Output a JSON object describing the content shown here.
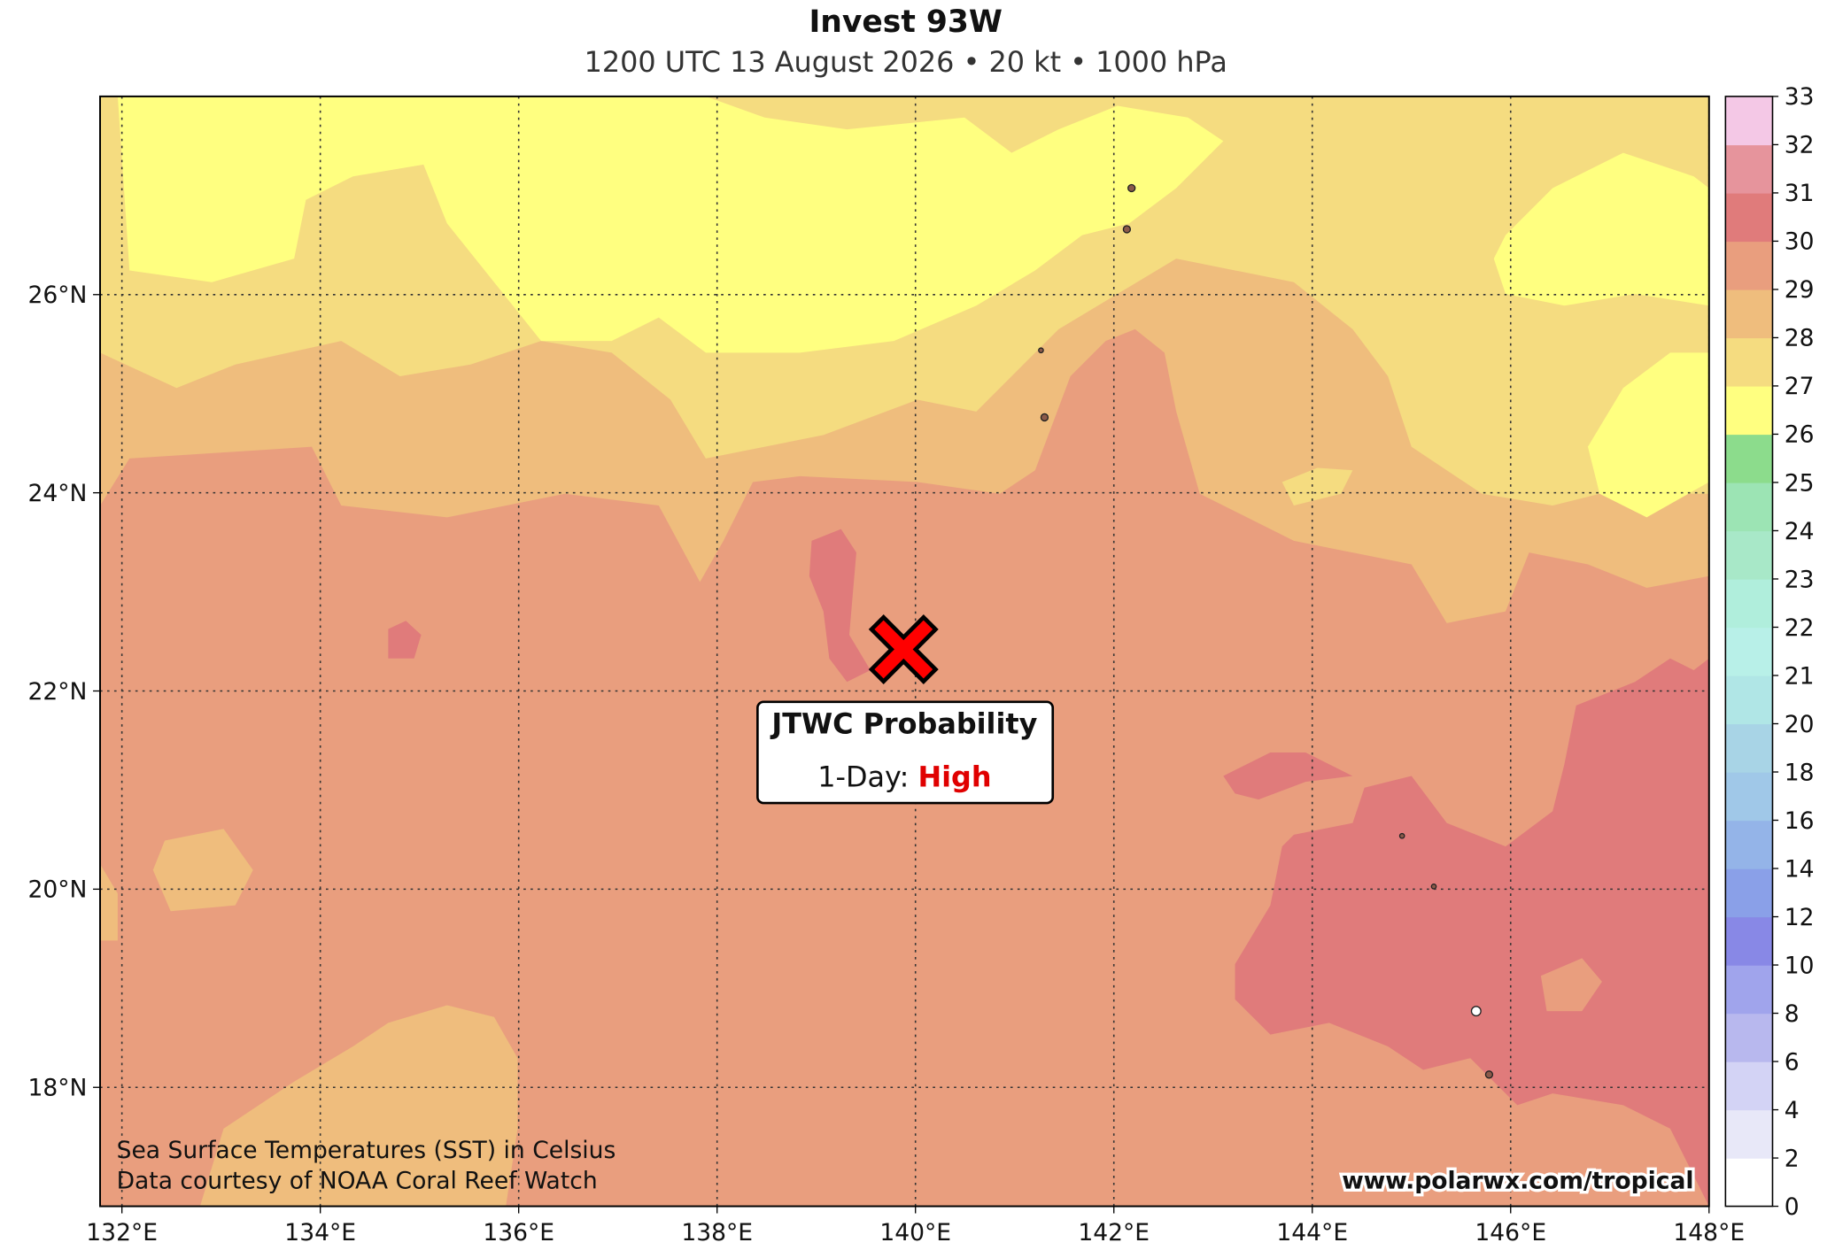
{
  "header": {
    "title": "Invest 93W",
    "subtitle": "1200 UTC 13 August 2026 • 20 kt • 1000 hPa"
  },
  "map": {
    "xlim": [
      131.78,
      148
    ],
    "ylim": [
      16.8,
      28.0
    ],
    "grid": true,
    "xticks": [
      {
        "value": 132,
        "label": "132°E"
      },
      {
        "value": 134,
        "label": "134°E"
      },
      {
        "value": 136,
        "label": "136°E"
      },
      {
        "value": 138,
        "label": "138°E"
      },
      {
        "value": 140,
        "label": "140°E"
      },
      {
        "value": 142,
        "label": "142°E"
      },
      {
        "value": 144,
        "label": "144°E"
      },
      {
        "value": 146,
        "label": "146°E"
      },
      {
        "value": 148,
        "label": "148°E"
      }
    ],
    "yticks": [
      {
        "value": 18,
        "label": "18°N"
      },
      {
        "value": 20,
        "label": "20°N"
      },
      {
        "value": 22,
        "label": "22°N"
      },
      {
        "value": 24,
        "label": "24°N"
      },
      {
        "value": 26,
        "label": "26°N"
      }
    ],
    "storm": {
      "lon": 139.88,
      "lat": 22.42,
      "color": "#ff0000"
    }
  },
  "colorbar": {
    "levels": [
      0,
      2,
      4,
      6,
      8,
      10,
      12,
      14,
      16,
      18,
      20,
      21,
      22,
      23,
      24,
      25,
      26,
      27,
      28,
      29,
      30,
      31,
      32,
      33
    ],
    "colors": [
      "#ffffff",
      "#e8e8f8",
      "#d3d3f5",
      "#b8b8ee",
      "#a0a4ec",
      "#8888e6",
      "#8aa0e8",
      "#94b4e8",
      "#a0c8e8",
      "#a8d4e6",
      "#b0e6e6",
      "#b8f0e8",
      "#b0eedc",
      "#a8e8c8",
      "#9ce4b4",
      "#8cdc8c",
      "#ffff80",
      "#f5dc80",
      "#efbd7d",
      "#e99e7e",
      "#e07b7b",
      "#e6949c",
      "#f4c8e6"
    ]
  },
  "annotation": {
    "title": "JTWC Probability",
    "label": "1-Day:",
    "value": "High"
  },
  "notes": [
    "Sea Surface Temperatures (SST) in Celsius",
    "Data courtesy of NOAA Coral Reef Watch"
  ],
  "watermark": "www.polarwx.com/tropical"
}
